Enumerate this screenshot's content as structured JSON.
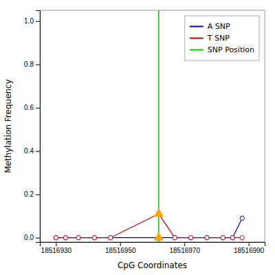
{
  "chart_data": {
    "type": "line",
    "xlabel": "CpG Coordinates",
    "ylabel": "Methylation Frequency",
    "x": [
      18516930,
      18516933,
      18516937,
      18516942,
      18516947,
      18516962,
      18516967,
      18516972,
      18516977,
      18516982,
      18516985,
      18516988
    ],
    "series": [
      {
        "name": "A SNP",
        "color": "#0000cc",
        "marker": "circle",
        "values": [
          0.0,
          0.0,
          0.0,
          0.0,
          0.0,
          0.0,
          0.0,
          0.0,
          0.0,
          0.0,
          0.0,
          0.09
        ]
      },
      {
        "name": "T SNP",
        "color": "#cc0000",
        "marker": "circle",
        "values": [
          0.0,
          0.0,
          0.0,
          0.0,
          0.0,
          0.11,
          0.0,
          0.0,
          0.0,
          0.0,
          0.0,
          0.0
        ]
      }
    ],
    "vline": {
      "name": "SNP Position",
      "x": 18516962,
      "color": "#00cc00",
      "marker": "triangle",
      "marker_color": "#FFA500"
    },
    "xlim": [
      18516925,
      18516995
    ],
    "ylim": [
      -0.02,
      1.05
    ],
    "xticks": [
      18516930,
      18516950,
      18516970,
      18516990
    ],
    "yticks": [
      {
        "value": 0.0,
        "label": "0.0"
      },
      0.2,
      0.4,
      0.6,
      0.8,
      {
        "value": 1.0,
        "label": "1.0"
      }
    ],
    "legend": "upper right"
  }
}
